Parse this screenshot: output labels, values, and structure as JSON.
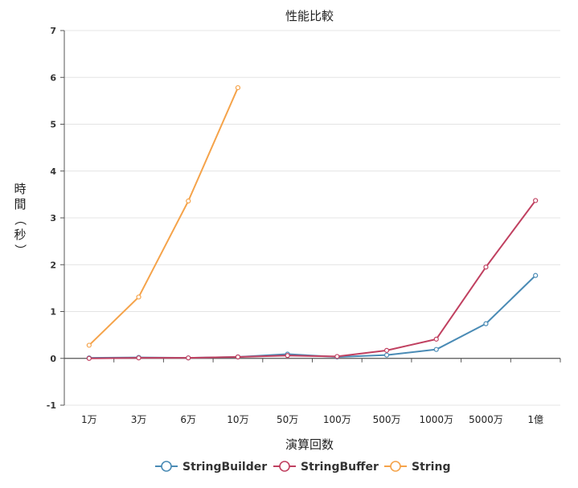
{
  "chart_data": {
    "type": "line",
    "title": "性能比較",
    "xlabel": "演算回数",
    "ylabel": "時間（秒）",
    "ylim": [
      -1,
      7
    ],
    "yticks": [
      -1,
      0,
      1,
      2,
      3,
      4,
      5,
      6,
      7
    ],
    "categories": [
      "1万",
      "3万",
      "6万",
      "10万",
      "50万",
      "100万",
      "500万",
      "1000万",
      "5000万",
      "1億"
    ],
    "grid": true,
    "legend_position": "bottom",
    "series": [
      {
        "name": "StringBuilder",
        "color": "#4a8bb5",
        "values": [
          0.01,
          0.02,
          0.01,
          0.03,
          0.09,
          0.03,
          0.07,
          0.19,
          0.74,
          1.77
        ]
      },
      {
        "name": "StringBuffer",
        "color": "#c04060",
        "values": [
          0.0,
          0.01,
          0.01,
          0.03,
          0.06,
          0.04,
          0.17,
          0.41,
          1.95,
          3.37
        ]
      },
      {
        "name": "String",
        "color": "#f5a34a",
        "values": [
          0.28,
          1.31,
          3.36,
          5.78,
          null,
          null,
          null,
          null,
          null,
          null
        ]
      }
    ]
  }
}
